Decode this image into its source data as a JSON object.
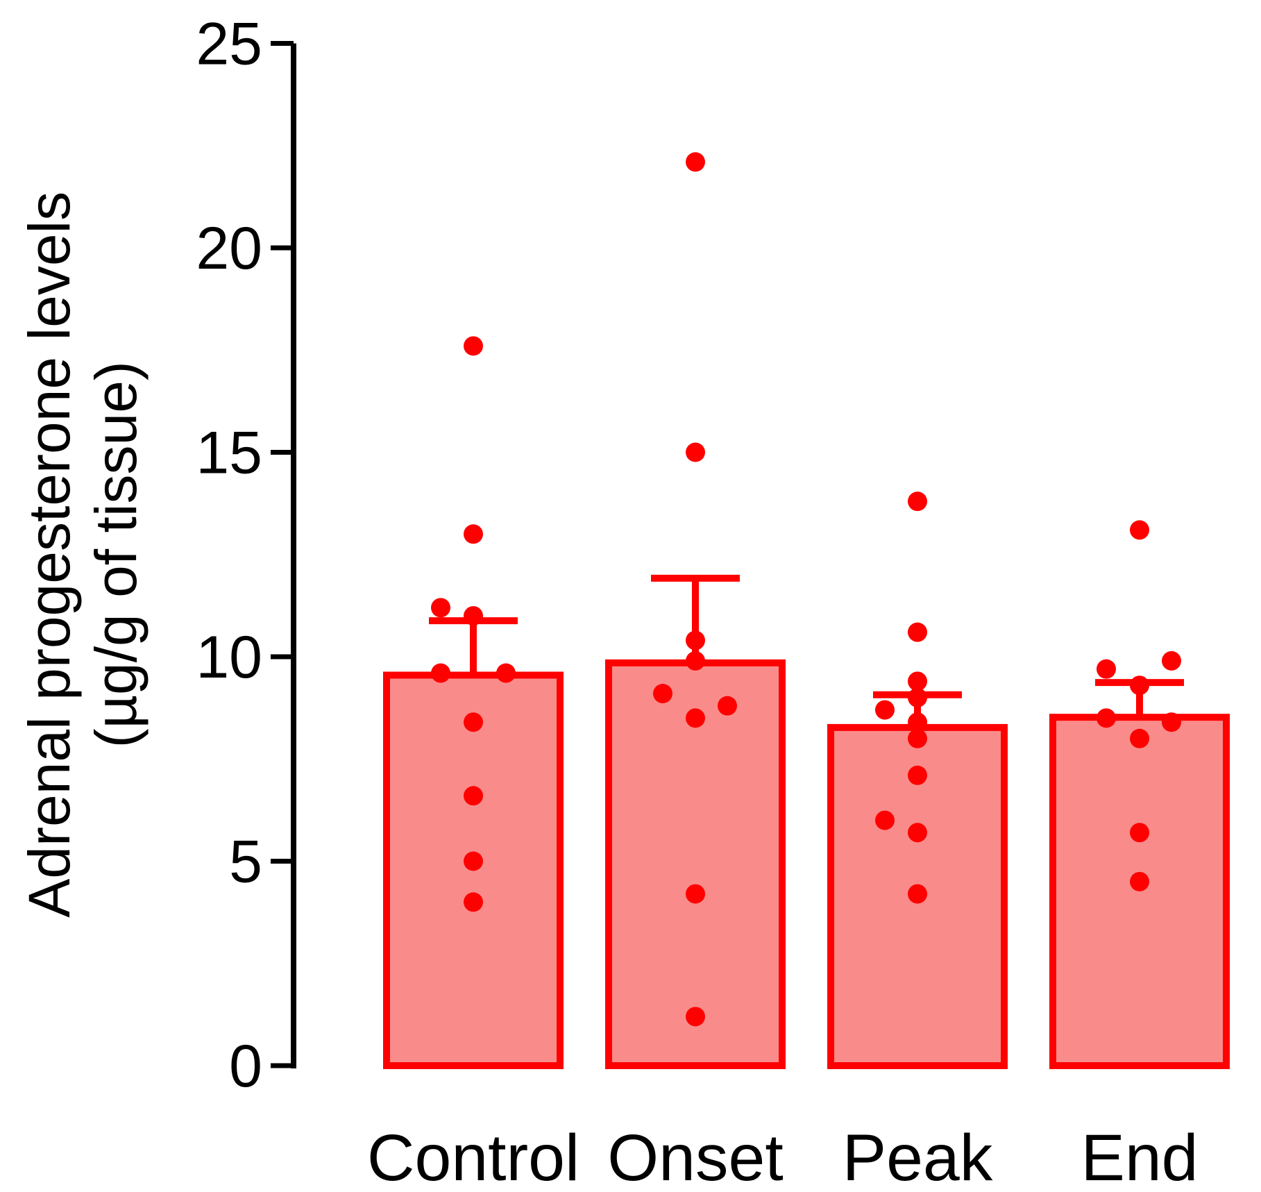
{
  "figure": {
    "background": "#FFFFFF",
    "axis_color": "#000000",
    "point_color": "#FF0000",
    "bar_border_color": "#FF0000",
    "bar_fill_color": "#FA8B8B"
  },
  "chart_data": {
    "type": "bar",
    "subtype": "bar-with-scatter-overlay-and-sem-error-bars",
    "title": "",
    "xlabel": "",
    "ylabel": "Adrenal progesterone levels (µg/g of tissue)",
    "ylabel_lines": [
      "Adrenal progesterone levels",
      "(µg/g of tissue)"
    ],
    "ylim": [
      0,
      25
    ],
    "yticks": [
      0,
      5,
      10,
      15,
      20,
      25
    ],
    "grid": false,
    "legend": null,
    "categories": [
      "Control",
      "Onset",
      "Peak",
      "End"
    ],
    "series": [
      {
        "name": "Control",
        "mean": 9.55,
        "sem": 1.33,
        "points": [
          17.6,
          13.0,
          11.2,
          11.0,
          9.6,
          9.6,
          8.4,
          6.6,
          5.0,
          4.0
        ],
        "point_dx": [
          0,
          0,
          -47,
          0,
          -47,
          47,
          0,
          0,
          0,
          0
        ]
      },
      {
        "name": "Onset",
        "mean": 9.85,
        "sem": 2.07,
        "points": [
          22.1,
          15.0,
          10.4,
          9.9,
          9.1,
          8.8,
          8.5,
          4.2,
          1.2
        ],
        "point_dx": [
          0,
          0,
          0,
          0,
          -47,
          46,
          0,
          0,
          0
        ]
      },
      {
        "name": "Peak",
        "mean": 8.27,
        "sem": 0.8,
        "points": [
          13.8,
          10.6,
          9.4,
          9.0,
          8.7,
          8.4,
          8.0,
          7.1,
          6.0,
          5.7,
          4.2
        ],
        "point_dx": [
          0,
          0,
          0,
          0,
          -47,
          0,
          0,
          0,
          -47,
          0,
          0
        ]
      },
      {
        "name": "End",
        "mean": 8.52,
        "sem": 0.85,
        "points": [
          13.1,
          9.9,
          9.7,
          9.3,
          8.5,
          8.4,
          8.0,
          5.7,
          4.5
        ],
        "point_dx": [
          0,
          46,
          -48,
          0,
          -48,
          46,
          0,
          0,
          0
        ]
      }
    ]
  }
}
